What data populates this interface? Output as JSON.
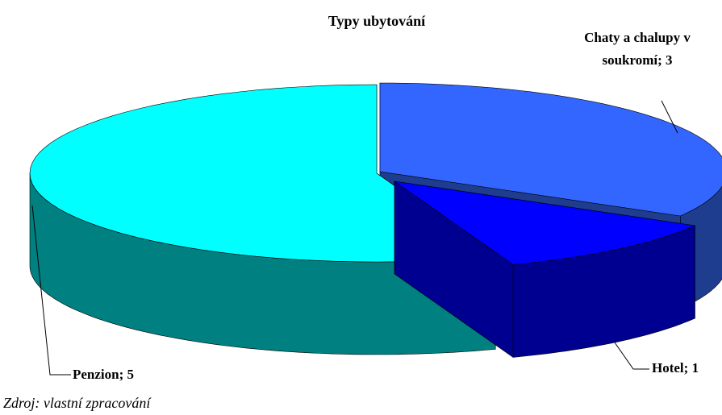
{
  "chart_data": {
    "type": "pie3d",
    "title": "Typy ubytování",
    "values": [
      3,
      1,
      5
    ],
    "value_labels": [
      "Chaty a chalupy v soukromí; 3",
      "Hotel; 1",
      "Penzion; 5"
    ],
    "colors": [
      "#3366ff",
      "#0000ff",
      "#00ffff"
    ],
    "side_colors": [
      "#1f3d8f",
      "#000090",
      "#008080"
    ],
    "source": "Zdroj: vlastní zpracování"
  }
}
